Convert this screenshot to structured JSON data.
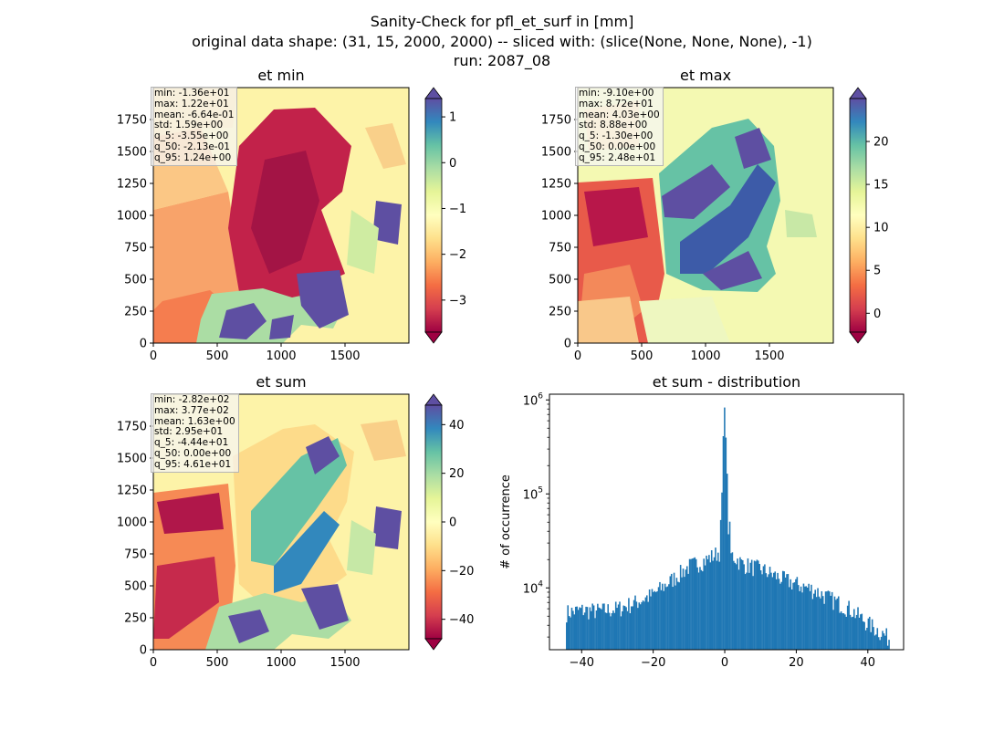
{
  "figure": {
    "title_line1": "Sanity-Check for pfl_et_surf in [mm]",
    "title_line2": "original data shape: (31, 15, 2000, 2000) -- sliced with: (slice(None, None, None), -1)",
    "title_line3": "run: 2087_08"
  },
  "colors": {
    "colormap": "Spectral",
    "histogram_bar": "#1f77b4",
    "axes_edge": "#000000"
  },
  "chart_data": [
    {
      "type": "heatmap",
      "title": "et min",
      "colormap": "Spectral",
      "x_ticks": [
        "0",
        "500",
        "1000",
        "1500"
      ],
      "y_ticks": [
        "0",
        "250",
        "500",
        "750",
        "1000",
        "1250",
        "1500",
        "1750"
      ],
      "xlim": [
        0,
        2000
      ],
      "ylim": [
        0,
        2000
      ],
      "colorbar": {
        "vmin": -3.7,
        "vmax": 1.4,
        "ticks": [
          "1",
          "0",
          "−1",
          "−2",
          "−3"
        ],
        "tick_values": [
          1,
          0,
          -1,
          -2,
          -3
        ],
        "extend": "both"
      },
      "stats": {
        "min": "min: -1.36e+01",
        "max": "max: 1.22e+01",
        "mean": "mean: -6.64e-01",
        "std": "std: 1.59e+00",
        "q_5": "q_5: -3.55e+00",
        "q_50": "q_50: -2.13e-01",
        "q_95": "q_95: 1.24e+00"
      }
    },
    {
      "type": "heatmap",
      "title": "et max",
      "colormap": "Spectral",
      "x_ticks": [
        "0",
        "500",
        "1000",
        "1500"
      ],
      "y_ticks": [
        "0",
        "250",
        "500",
        "750",
        "1000",
        "1250",
        "1500",
        "1750"
      ],
      "xlim": [
        0,
        2000
      ],
      "ylim": [
        0,
        2000
      ],
      "colorbar": {
        "vmin": -2.2,
        "vmax": 25,
        "ticks": [
          "20",
          "15",
          "10",
          "5",
          "0"
        ],
        "tick_values": [
          20,
          15,
          10,
          5,
          0
        ],
        "extend": "both"
      },
      "stats": {
        "min": "min: -9.10e+00",
        "max": "max: 8.72e+01",
        "mean": "mean: 4.03e+00",
        "std": "std: 8.88e+00",
        "q_5": "q_5: -1.30e+00",
        "q_50": "q_50: 0.00e+00",
        "q_95": "q_95: 2.48e+01"
      }
    },
    {
      "type": "heatmap",
      "title": "et sum",
      "colormap": "Spectral",
      "x_ticks": [
        "0",
        "500",
        "1000",
        "1500"
      ],
      "y_ticks": [
        "0",
        "250",
        "500",
        "750",
        "1000",
        "1250",
        "1500",
        "1750"
      ],
      "xlim": [
        0,
        2000
      ],
      "ylim": [
        0,
        2000
      ],
      "colorbar": {
        "vmin": -48,
        "vmax": 48,
        "ticks": [
          "40",
          "20",
          "0",
          "−20",
          "−40"
        ],
        "tick_values": [
          40,
          20,
          0,
          -20,
          -40
        ],
        "extend": "both"
      },
      "stats": {
        "min": "min: -2.82e+02",
        "max": "max: 3.77e+02",
        "mean": "mean: 1.63e+00",
        "std": "std: 2.95e+01",
        "q_5": "q_5: -4.44e+01",
        "q_50": "q_50: 0.00e+00",
        "q_95": "q_95: 4.61e+01"
      }
    },
    {
      "type": "bar",
      "title": "et sum - distribution",
      "ylabel": "# of occurrence",
      "xlabel": "",
      "x_scale": "linear",
      "y_scale": "log",
      "xlim": [
        -49,
        50
      ],
      "ylim": [
        2200,
        1150000
      ],
      "x_ticks": [
        "−40",
        "−20",
        "0",
        "20",
        "40"
      ],
      "x_tick_values": [
        -40,
        -20,
        0,
        20,
        40
      ],
      "y_ticks": [
        "10^4",
        "10^5",
        "10^6"
      ],
      "y_tick_values": [
        10000,
        100000,
        1000000
      ],
      "histogram_range": [
        -44.4,
        46.1
      ],
      "bin_count": 250,
      "bin_shape": [
        {
          "x": -44,
          "y": 5500
        },
        {
          "x": -40,
          "y": 5800
        },
        {
          "x": -35,
          "y": 5700
        },
        {
          "x": -30,
          "y": 6000
        },
        {
          "x": -25,
          "y": 7000
        },
        {
          "x": -20,
          "y": 8500
        },
        {
          "x": -15,
          "y": 12000
        },
        {
          "x": -10,
          "y": 17000
        },
        {
          "x": -5,
          "y": 20000
        },
        {
          "x": -1,
          "y": 25000
        },
        {
          "x": 0,
          "y": 830000
        },
        {
          "x": 1,
          "y": 24000
        },
        {
          "x": 5,
          "y": 18000
        },
        {
          "x": 10,
          "y": 16000
        },
        {
          "x": 15,
          "y": 13000
        },
        {
          "x": 20,
          "y": 11000
        },
        {
          "x": 25,
          "y": 9500
        },
        {
          "x": 30,
          "y": 7500
        },
        {
          "x": 35,
          "y": 6000
        },
        {
          "x": 40,
          "y": 4200
        },
        {
          "x": 44,
          "y": 3300
        },
        {
          "x": 46,
          "y": 2900
        }
      ]
    }
  ]
}
